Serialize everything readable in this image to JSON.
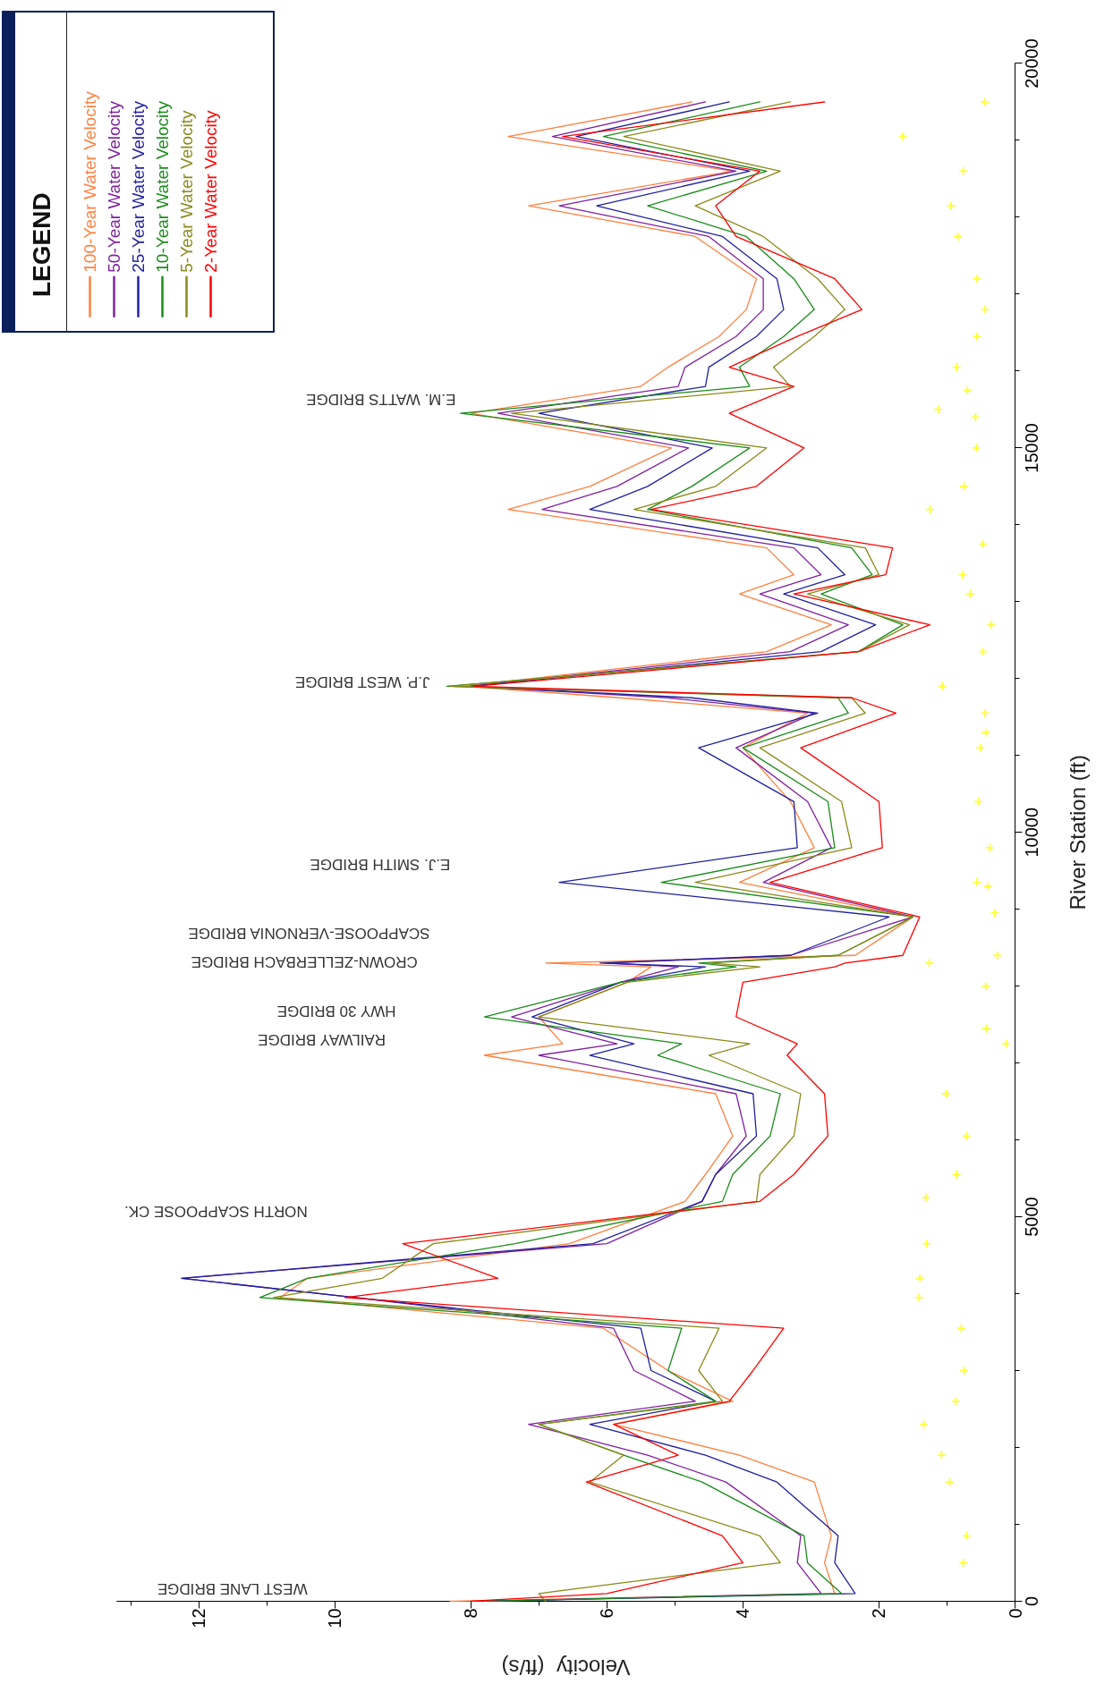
{
  "chart_data": {
    "type": "line",
    "xlabel": "Velocity  (ft/s)",
    "ylabel": "River Station (ft)",
    "legend_title": "LEGEND",
    "legend": "top left",
    "grid": false,
    "marker": "none",
    "line_style": "solid",
    "xlim": [
      13.2,
      0
    ],
    "xticks": [
      0,
      2,
      4,
      6,
      8,
      10,
      12
    ],
    "ylim": [
      0,
      20000
    ],
    "yticks": [
      0,
      5000,
      10000,
      15000,
      20000
    ],
    "series": [
      {
        "name": "100-Year Water Velocity",
        "color": "#ff8040",
        "x": [
          8.3,
          2.65,
          2.8,
          2.7,
          2.95,
          4.05,
          5.9,
          4.15,
          5.1,
          6.05,
          10.8,
          10.4,
          6.55,
          4.85,
          4.55,
          4.15,
          4.4,
          7.8,
          6.65,
          7.0,
          5.7,
          5.35,
          6.9,
          2.35,
          1.5,
          4.05,
          2.95,
          3.3,
          4.0,
          3.05,
          5.8,
          8.1,
          3.65,
          2.7,
          4.05,
          3.25,
          3.65,
          7.45,
          6.25,
          5.05,
          8.0,
          5.5,
          5.1,
          4.35,
          3.95,
          3.8,
          4.7,
          7.15,
          4.15,
          7.45,
          4.75
        ],
        "values": [
          0,
          100,
          500,
          850,
          1550,
          1900,
          2300,
          2600,
          3000,
          3550,
          3950,
          4200,
          4650,
          5200,
          5550,
          6050,
          6600,
          7100,
          7250,
          7600,
          8050,
          8250,
          8300,
          8400,
          8900,
          9350,
          9800,
          10400,
          11100,
          11550,
          11750,
          11900,
          12350,
          12700,
          13100,
          13350,
          13700,
          14200,
          14500,
          15000,
          15450,
          15800,
          16050,
          16450,
          16800,
          17200,
          17750,
          18150,
          18600,
          19050,
          19500
        ]
      },
      {
        "name": "50-Year Water Velocity",
        "color": "#8020a0",
        "x": [
          7.8,
          2.85,
          3.2,
          3.15,
          4.25,
          5.4,
          7.15,
          4.7,
          5.6,
          5.9,
          9.7,
          12.25,
          6.0,
          4.6,
          4.4,
          3.95,
          4.1,
          7.0,
          5.85,
          7.4,
          5.8,
          4.95,
          6.0,
          3.3,
          1.5,
          3.7,
          2.7,
          3.05,
          4.1,
          2.95,
          5.1,
          8.0,
          3.3,
          2.45,
          3.75,
          2.85,
          3.25,
          6.95,
          5.85,
          4.8,
          7.6,
          4.95,
          4.85,
          4.1,
          3.7,
          3.7,
          4.5,
          6.7,
          4.1,
          6.8,
          4.55
        ],
        "values": [
          0,
          100,
          500,
          850,
          1550,
          1900,
          2300,
          2600,
          3000,
          3550,
          3950,
          4200,
          4650,
          5200,
          5550,
          6050,
          6600,
          7100,
          7250,
          7600,
          8050,
          8250,
          8300,
          8400,
          8900,
          9350,
          9800,
          10400,
          11100,
          11550,
          11750,
          11900,
          12350,
          12700,
          13100,
          13350,
          13700,
          14200,
          14500,
          15000,
          15450,
          15800,
          16050,
          16450,
          16800,
          17200,
          17750,
          18150,
          18600,
          19050,
          19500
        ]
      },
      {
        "name": "25-Year Water Velocity",
        "color": "#2020a0",
        "x": [
          7.8,
          2.35,
          2.65,
          2.6,
          3.5,
          4.55,
          6.25,
          4.4,
          5.35,
          5.5,
          9.7,
          12.25,
          6.2,
          4.6,
          4.4,
          3.8,
          3.85,
          6.25,
          5.6,
          7.1,
          5.8,
          4.55,
          6.1,
          3.3,
          1.85,
          6.7,
          3.2,
          3.25,
          4.65,
          2.9,
          4.75,
          8.0,
          2.85,
          2.05,
          3.4,
          2.5,
          2.9,
          6.25,
          5.4,
          4.45,
          7.0,
          4.55,
          4.5,
          3.8,
          3.4,
          3.5,
          4.3,
          6.15,
          3.9,
          6.45,
          4.2
        ],
        "values": [
          0,
          100,
          500,
          850,
          1550,
          1900,
          2300,
          2600,
          3000,
          3550,
          3950,
          4200,
          4650,
          5200,
          5550,
          6050,
          6600,
          7100,
          7250,
          7600,
          8050,
          8250,
          8300,
          8400,
          8900,
          9350,
          9800,
          10400,
          11100,
          11550,
          11750,
          11900,
          12350,
          12700,
          13100,
          13350,
          13700,
          14200,
          14500,
          15000,
          15450,
          15800,
          16050,
          16450,
          16800,
          17200,
          17750,
          18150,
          18600,
          19050,
          19500
        ]
      },
      {
        "name": "10-Year Water Velocity",
        "color": "#1a8c1a",
        "x": [
          7.8,
          2.55,
          3.05,
          3.1,
          4.6,
          5.75,
          7.0,
          4.4,
          5.1,
          4.9,
          11.1,
          10.4,
          7.35,
          4.3,
          4.15,
          3.6,
          3.45,
          5.25,
          4.9,
          7.8,
          5.8,
          4.1,
          4.65,
          2.6,
          1.5,
          5.2,
          2.65,
          2.75,
          4.0,
          2.45,
          2.6,
          8.35,
          2.3,
          1.65,
          2.85,
          2.1,
          2.4,
          5.4,
          4.75,
          3.9,
          8.15,
          3.9,
          4.05,
          3.4,
          2.95,
          3.25,
          3.95,
          5.4,
          3.65,
          6.05,
          3.75
        ],
        "values": [
          0,
          100,
          500,
          850,
          1550,
          1900,
          2300,
          2600,
          3000,
          3550,
          3950,
          4200,
          4650,
          5200,
          5550,
          6050,
          6600,
          7100,
          7250,
          7600,
          8050,
          8250,
          8300,
          8400,
          8900,
          9350,
          9800,
          10400,
          11100,
          11550,
          11750,
          11900,
          12350,
          12700,
          13100,
          13350,
          13700,
          14200,
          14500,
          15000,
          15450,
          15800,
          16050,
          16450,
          16800,
          17200,
          17750,
          18150,
          18600,
          19050,
          19500
        ]
      },
      {
        "name": "5-Year Water Velocity",
        "color": "#8a8a1a",
        "x": [
          6.9,
          7.0,
          3.45,
          3.75,
          6.25,
          5.75,
          7.0,
          4.3,
          4.65,
          4.35,
          10.9,
          9.3,
          8.55,
          3.8,
          3.75,
          3.25,
          3.15,
          4.5,
          3.9,
          7.0,
          5.7,
          3.75,
          4.5,
          2.6,
          1.5,
          4.7,
          2.4,
          2.55,
          3.75,
          2.2,
          2.4,
          8.3,
          2.3,
          1.55,
          3.05,
          2.0,
          2.2,
          5.6,
          4.4,
          3.65,
          7.4,
          3.3,
          3.55,
          2.95,
          2.5,
          2.9,
          3.7,
          4.7,
          3.45,
          5.75,
          3.3
        ],
        "values": [
          0,
          100,
          500,
          850,
          1550,
          1900,
          2300,
          2600,
          3000,
          3550,
          3950,
          4200,
          4650,
          5200,
          5550,
          6050,
          6600,
          7100,
          7250,
          7600,
          8050,
          8250,
          8300,
          8400,
          8900,
          9350,
          9800,
          10400,
          11100,
          11550,
          11750,
          11900,
          12350,
          12700,
          13100,
          13350,
          13700,
          14200,
          14500,
          15000,
          15450,
          15800,
          16050,
          16450,
          16800,
          17200,
          17750,
          18150,
          18600,
          19050,
          19500
        ]
      },
      {
        "name": "2-Year Water Velocity",
        "color": "#ff0000",
        "x": [
          8.0,
          6.0,
          4.0,
          4.3,
          6.3,
          4.95,
          5.9,
          4.2,
          3.85,
          3.4,
          9.85,
          7.6,
          9.0,
          3.75,
          3.25,
          2.75,
          2.8,
          3.35,
          3.2,
          4.1,
          4.0,
          2.65,
          2.5,
          1.65,
          1.4,
          3.6,
          1.95,
          2.0,
          3.15,
          1.75,
          2.4,
          7.95,
          2.3,
          1.25,
          3.25,
          1.9,
          1.8,
          5.35,
          3.8,
          3.1,
          4.2,
          3.25,
          4.2,
          3.2,
          2.25,
          2.65,
          4.1,
          4.4,
          3.75,
          6.65,
          2.8
        ],
        "values": [
          0,
          100,
          500,
          850,
          1550,
          1900,
          2300,
          2600,
          3000,
          3550,
          3950,
          4200,
          4650,
          5200,
          5550,
          6050,
          6600,
          7100,
          7250,
          7600,
          8050,
          8250,
          8300,
          8400,
          8900,
          9350,
          9800,
          10400,
          11100,
          11550,
          11750,
          11900,
          12350,
          12700,
          13100,
          13350,
          13700,
          14200,
          14500,
          15000,
          15450,
          15800,
          16050,
          16450,
          16800,
          17200,
          17750,
          18150,
          18600,
          19050,
          19500
        ]
      },
      {
        "type": "scatter",
        "marker": "cross",
        "color": "#ffff00",
        "x": [
          0.76,
          0.71,
          0.96,
          1.08,
          1.34,
          0.87,
          0.75,
          0.79,
          1.41,
          1.4,
          1.3,
          1.31,
          0.86,
          0.71,
          1.01,
          0.13,
          0.42,
          0.43,
          1.26,
          0.26,
          0.3,
          0.4,
          0.56,
          0.37,
          0.54,
          0.51,
          0.43,
          0.44,
          1.07,
          0.47,
          0.35,
          0.66,
          0.77,
          0.47,
          1.25,
          0.75,
          0.57,
          0.58,
          1.13,
          0.7,
          0.86,
          0.56,
          0.44,
          0.56,
          0.84,
          0.94,
          0.76,
          1.65,
          0.44
        ],
        "values": [
          500,
          850,
          1550,
          1900,
          2300,
          2600,
          3000,
          3550,
          3950,
          4200,
          4650,
          5250,
          5550,
          6050,
          6600,
          7250,
          7450,
          8000,
          8300,
          8400,
          8950,
          9300,
          9350,
          9800,
          10400,
          11100,
          11300,
          11550,
          11900,
          12350,
          12700,
          13100,
          13350,
          13750,
          14200,
          14500,
          15000,
          15400,
          15500,
          15750,
          16050,
          16450,
          16800,
          17200,
          17750,
          18150,
          18600,
          19050,
          19500
        ]
      }
    ],
    "annotations": [
      "WEST LANE BRIDGE",
      "NORTH SCAPPOOSE CK.",
      "RAILWAY BRIDGE",
      "HWY 30 BRIDGE",
      "CROWN-ZELLERBACH BRIDGE",
      "SCAPPOOSE-VERNONIA BRIDGE",
      "E.J. SMITH BRIDGE",
      "J.P. WEST BRIDGE",
      "E.M. WATTS BRIDGE"
    ]
  }
}
